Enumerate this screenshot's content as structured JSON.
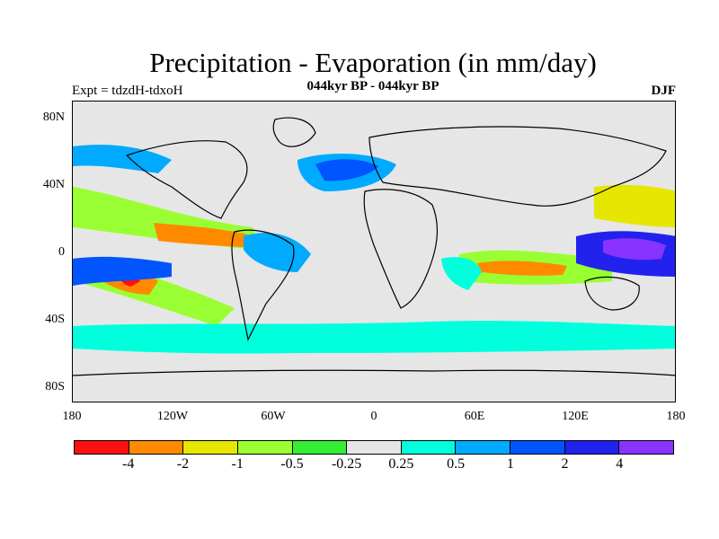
{
  "title": "Precipitation - Evaporation (in mm/day)",
  "subtitle": "044kyr BP - 044kyr BP",
  "left_label": "Expt = tdzdH-tdxoH",
  "right_label": "DJF",
  "lat_labels": [
    "80N",
    "40N",
    "0",
    "40S",
    "80S"
  ],
  "lon_labels": [
    "180",
    "120W",
    "60W",
    "0",
    "60E",
    "120E",
    "180"
  ],
  "colorbar": {
    "colors": [
      "#ff1010",
      "#ff8a00",
      "#e6e600",
      "#99ff33",
      "#33ee33",
      "#e6e6e6",
      "#00ffdd",
      "#00aaff",
      "#0055ff",
      "#2222ee",
      "#8833ff"
    ],
    "labels": [
      "-4",
      "-2",
      "-1",
      "-0.5",
      "-0.25",
      "0.25",
      "0.5",
      "1",
      "2",
      "4"
    ]
  }
}
